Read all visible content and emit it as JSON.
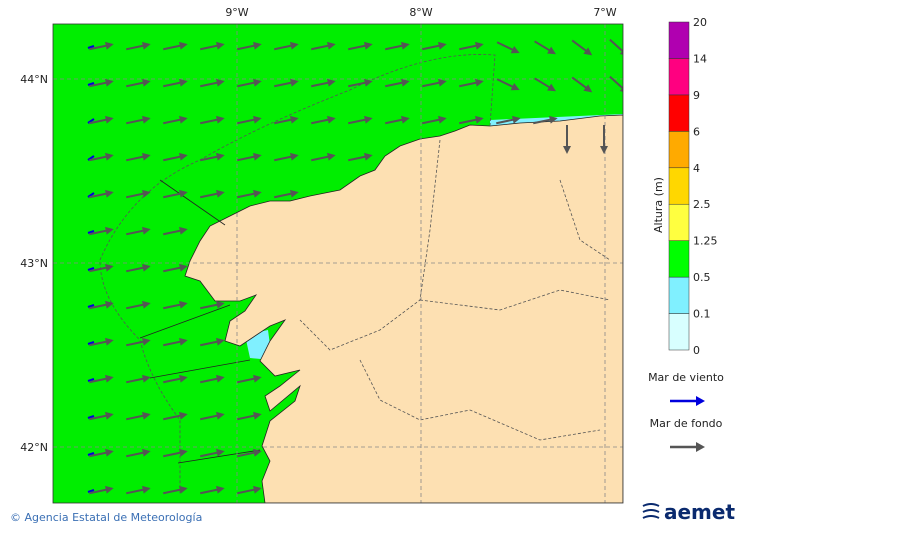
{
  "map": {
    "lon_labels": [
      "9°W",
      "8°W",
      "7°W"
    ],
    "lat_labels": [
      "44°N",
      "43°N",
      "42°N"
    ]
  },
  "colorbar": {
    "title": "Altura (m)",
    "levels": [
      0,
      0.1,
      0.5,
      1.25,
      2.5,
      4,
      6,
      9,
      14,
      20
    ],
    "colors": [
      "#d8ffff",
      "#80f0ff",
      "#00ff00",
      "#ffff40",
      "#ffd700",
      "#ffaa00",
      "#ff0000",
      "#ff0080",
      "#b000b0"
    ]
  },
  "legend": {
    "items": [
      {
        "label": "Mar de viento",
        "color": "#0000dd"
      },
      {
        "label": "Mar de fondo",
        "color": "#555555"
      }
    ]
  },
  "footer": {
    "credit": "© Agencia Estatal de Meteorología",
    "logo": "aemet"
  }
}
